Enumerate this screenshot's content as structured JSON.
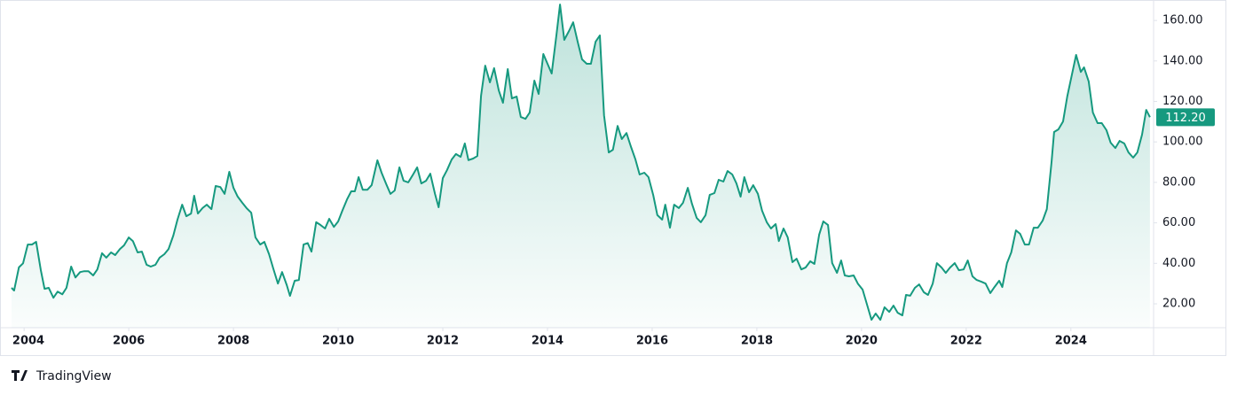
{
  "chart_data": {
    "type": "area",
    "brand": "TradingView",
    "color": "#16997f",
    "x": [
      2003.76,
      2003.81,
      2003.9,
      2003.98,
      2004.07,
      2004.15,
      2004.23,
      2004.32,
      2004.39,
      2004.47,
      2004.56,
      2004.64,
      2004.73,
      2004.81,
      2004.9,
      2004.98,
      2005.07,
      2005.15,
      2005.23,
      2005.32,
      2005.4,
      2005.49,
      2005.57,
      2005.66,
      2005.74,
      2005.83,
      2005.91,
      2006.0,
      2006.08,
      2006.17,
      2006.25,
      2006.34,
      2006.42,
      2006.51,
      2006.59,
      2006.68,
      2006.76,
      2006.85,
      2006.93,
      2007.02,
      2007.1,
      2007.19,
      2007.25,
      2007.32,
      2007.41,
      2007.49,
      2007.58,
      2007.66,
      2007.75,
      2007.83,
      2007.92,
      2008.0,
      2008.08,
      2008.17,
      2008.25,
      2008.34,
      2008.42,
      2008.51,
      2008.59,
      2008.68,
      2008.76,
      2008.85,
      2008.93,
      2009.02,
      2009.08,
      2009.17,
      2009.25,
      2009.34,
      2009.42,
      2009.49,
      2009.58,
      2009.66,
      2009.75,
      2009.83,
      2009.92,
      2010.0,
      2010.08,
      2010.17,
      2010.25,
      2010.32,
      2010.39,
      2010.47,
      2010.56,
      2010.64,
      2010.75,
      2010.83,
      2010.92,
      2011.0,
      2011.08,
      2011.17,
      2011.25,
      2011.34,
      2011.42,
      2011.51,
      2011.59,
      2011.68,
      2011.76,
      2011.85,
      2011.92,
      2012.0,
      2012.08,
      2012.17,
      2012.25,
      2012.34,
      2012.42,
      2012.49,
      2012.58,
      2012.66,
      2012.73,
      2012.81,
      2012.9,
      2012.98,
      2013.07,
      2013.15,
      2013.24,
      2013.32,
      2013.41,
      2013.49,
      2013.58,
      2013.66,
      2013.75,
      2013.83,
      2013.92,
      2014.0,
      2014.08,
      2014.17,
      2014.24,
      2014.32,
      2014.41,
      2014.49,
      2014.58,
      2014.66,
      2014.75,
      2014.83,
      2014.92,
      2015.0,
      2015.08,
      2015.17,
      2015.25,
      2015.34,
      2015.42,
      2015.51,
      2015.59,
      2015.68,
      2015.76,
      2015.85,
      2015.93,
      2016.02,
      2016.1,
      2016.19,
      2016.25,
      2016.34,
      2016.42,
      2016.51,
      2016.59,
      2016.68,
      2016.76,
      2016.85,
      2016.93,
      2017.02,
      2017.1,
      2017.19,
      2017.27,
      2017.36,
      2017.44,
      2017.53,
      2017.61,
      2017.69,
      2017.76,
      2017.85,
      2017.93,
      2018.02,
      2018.1,
      2018.19,
      2018.27,
      2018.36,
      2018.42,
      2018.51,
      2018.59,
      2018.68,
      2018.76,
      2018.85,
      2018.93,
      2019.02,
      2019.1,
      2019.19,
      2019.27,
      2019.36,
      2019.44,
      2019.53,
      2019.61,
      2019.68,
      2019.76,
      2019.85,
      2019.93,
      2020.02,
      2020.1,
      2020.19,
      2020.27,
      2020.36,
      2020.44,
      2020.53,
      2020.61,
      2020.69,
      2020.78,
      2020.85,
      2020.93,
      2021.02,
      2021.1,
      2021.19,
      2021.27,
      2021.36,
      2021.44,
      2021.53,
      2021.61,
      2021.69,
      2021.78,
      2021.86,
      2021.95,
      2022.03,
      2022.12,
      2022.2,
      2022.29,
      2022.37,
      2022.46,
      2022.54,
      2022.63,
      2022.69,
      2022.78,
      2022.86,
      2022.95,
      2023.03,
      2023.12,
      2023.2,
      2023.29,
      2023.37,
      2023.46,
      2023.54,
      2023.63,
      2023.68,
      2023.76,
      2023.85,
      2023.93,
      2024.02,
      2024.1,
      2024.19,
      2024.25,
      2024.34,
      2024.42,
      2024.51,
      2024.59,
      2024.68,
      2024.76,
      2024.85,
      2024.93,
      2025.02,
      2025.1,
      2025.19,
      2025.27,
      2025.36,
      2025.44,
      2025.51
    ],
    "values": [
      27.9,
      26.6,
      38,
      40,
      49.3,
      49.3,
      50.6,
      36.6,
      27.4,
      27.9,
      23,
      26,
      24.7,
      27.9,
      38.4,
      33,
      35.7,
      36.1,
      36.1,
      34,
      37,
      45,
      42.8,
      45.4,
      44.1,
      47,
      48.9,
      52.8,
      51,
      45.4,
      45.8,
      39.3,
      38.4,
      39.3,
      42.8,
      44.5,
      47,
      53.7,
      61.6,
      69,
      63.3,
      64.6,
      73.4,
      64.6,
      67.3,
      69,
      66.8,
      78.2,
      77.7,
      74.3,
      85.2,
      77.3,
      73,
      69.9,
      67.3,
      65,
      52.8,
      49.3,
      50.6,
      44.5,
      37.5,
      30,
      35.7,
      29.2,
      23.9,
      31.4,
      31.8,
      49.3,
      50,
      45.8,
      60.3,
      59,
      57.2,
      62,
      58,
      60.7,
      66,
      71.6,
      75.6,
      75.6,
      82.6,
      76.4,
      76.4,
      78.6,
      90.9,
      84.8,
      79.1,
      74.3,
      76,
      87.4,
      80.8,
      80,
      83.4,
      87.4,
      79.5,
      80.8,
      84.3,
      74.3,
      67.7,
      82.1,
      86,
      91.3,
      94,
      92.6,
      99.2,
      91,
      91.8,
      93,
      122.8,
      137.7,
      129.4,
      136.4,
      125.4,
      119.3,
      136,
      121.5,
      122.4,
      112.3,
      111.4,
      114.5,
      130.3,
      123.7,
      143.4,
      138.6,
      133.8,
      152.6,
      167.9,
      150.4,
      154.8,
      159.1,
      149.1,
      140.8,
      138.6,
      138.6,
      149.5,
      152.6,
      113.2,
      94.8,
      96.1,
      107.9,
      101.4,
      104.4,
      97.9,
      91.3,
      83.9,
      84.8,
      82.6,
      73.8,
      63.8,
      61.6,
      69,
      57.6,
      69,
      67.3,
      69.9,
      77.3,
      69.4,
      62.4,
      60.3,
      63.8,
      73.8,
      74.7,
      81.3,
      80.4,
      85.6,
      83.9,
      79.5,
      72.9,
      82.6,
      75.1,
      78.6,
      74.3,
      66,
      60.3,
      57.2,
      59.4,
      51,
      57.2,
      52.8,
      40.6,
      42.3,
      37,
      37.9,
      41,
      39.7,
      54.1,
      60.7,
      58.9,
      40.1,
      35.3,
      41.4,
      34,
      33.6,
      34,
      30,
      27,
      20,
      12.1,
      15.2,
      12.1,
      18.3,
      16,
      19.1,
      15.6,
      14.3,
      24.4,
      24,
      27.9,
      29.6,
      25.7,
      24.4,
      30,
      40.1,
      37.9,
      35.3,
      37.9,
      40.1,
      36.6,
      37,
      41.4,
      33.6,
      31.8,
      30.9,
      30,
      25.3,
      28.3,
      31.4,
      28.3,
      40.1,
      45.4,
      56.3,
      54.6,
      49.3,
      49.3,
      57.6,
      57.6,
      61.1,
      66.8,
      90,
      104.9,
      106.2,
      110.1,
      122.4,
      133.3,
      143,
      134.6,
      136.8,
      129.8,
      114.5,
      109.3,
      109.3,
      105.8,
      99.6,
      97,
      100.5,
      99.2,
      94.8,
      92.2,
      94.8,
      103.6,
      115.8,
      112.2
    ],
    "last_value_label": "112.20",
    "xlim": [
      2003.76,
      2025.58
    ],
    "xticks": [
      2004,
      2006,
      2008,
      2010,
      2012,
      2014,
      2016,
      2018,
      2020,
      2022,
      2024
    ],
    "ylim": [
      8.2,
      168.8
    ],
    "yticks": [
      {
        "value": 20,
        "label": "20.00"
      },
      {
        "value": 40,
        "label": "40.00"
      },
      {
        "value": 60,
        "label": "60.00"
      },
      {
        "value": 80,
        "label": "80.00"
      },
      {
        "value": 100,
        "label": "100.00"
      },
      {
        "value": 120,
        "label": "120.00"
      },
      {
        "value": 140,
        "label": "140.00"
      },
      {
        "value": 160,
        "label": "160.00"
      }
    ]
  }
}
